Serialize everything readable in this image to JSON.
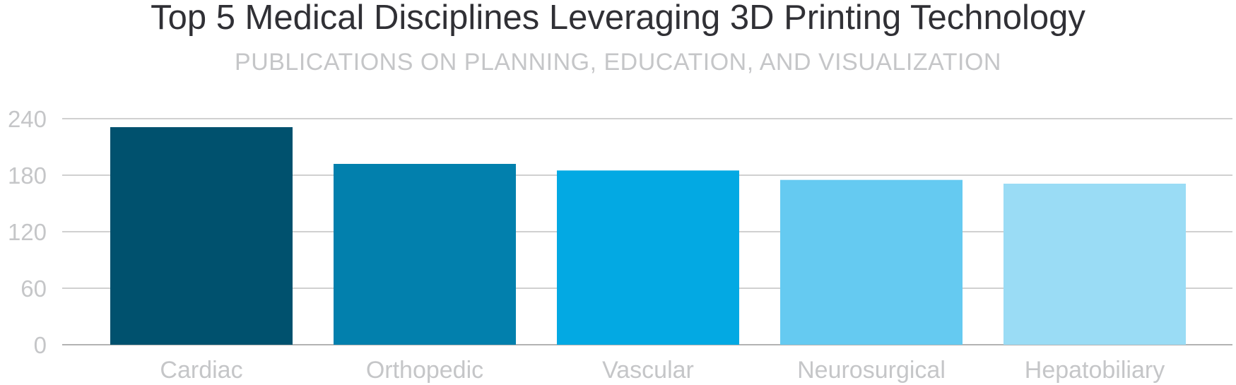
{
  "chart_data": {
    "type": "bar",
    "title": "Top 5 Medical Disciplines Leveraging 3D Printing Technology",
    "subtitle": "PUBLICATIONS ON PLANNING, EDUCATION, AND VISUALIZATION",
    "categories": [
      "Cardiac",
      "Orthopedic",
      "Vascular",
      "Neurosurgical",
      "Hepatobiliary"
    ],
    "values": [
      231,
      192,
      185,
      175,
      171
    ],
    "colors": [
      "#00516e",
      "#0280ad",
      "#03a9e3",
      "#65caf1",
      "#9adcf5"
    ],
    "ylim": [
      0,
      240
    ],
    "yticks": [
      0,
      60,
      120,
      180,
      240
    ],
    "grid": true,
    "legend": "none"
  }
}
